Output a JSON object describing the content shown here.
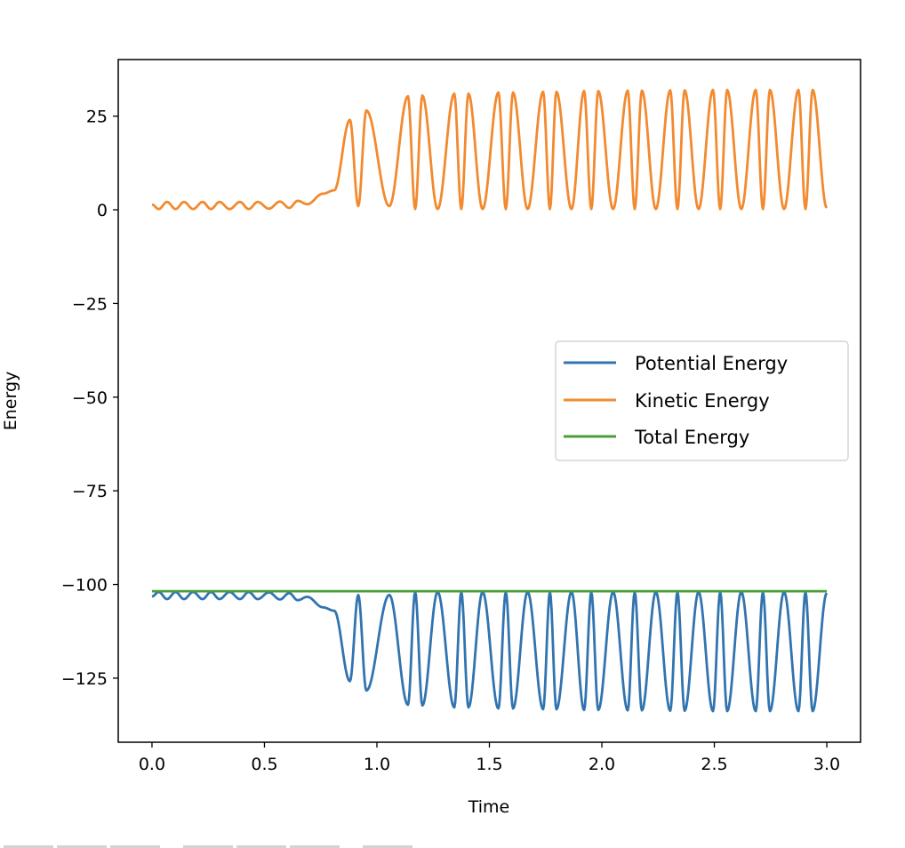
{
  "chart_data": {
    "type": "line",
    "title": "",
    "xlabel": "Time",
    "ylabel": "Energy",
    "xlim": [
      -0.15,
      3.15
    ],
    "ylim": [
      -142.1,
      40.1
    ],
    "xticks": [
      0.0,
      0.5,
      1.0,
      1.5,
      2.0,
      2.5,
      3.0
    ],
    "xtick_labels": [
      "0.0",
      "0.5",
      "1.0",
      "1.5",
      "2.0",
      "2.5",
      "3.0"
    ],
    "yticks": [
      25,
      0,
      -25,
      -50,
      -75,
      -100,
      -125
    ],
    "ytick_labels": [
      "25",
      "0",
      "−25",
      "−50",
      "−75",
      "−100",
      "−125"
    ],
    "grid": false,
    "legend_placement": "center-right",
    "extrema_t": [
      0,
      0.03,
      0.067,
      0.105,
      0.142,
      0.183,
      0.225,
      0.262,
      0.3,
      0.345,
      0.391,
      0.43,
      0.47,
      0.52,
      0.569,
      0.61,
      0.648,
      0.69,
      0.76,
      0.81,
      0.88,
      0.917,
      0.953,
      1.055,
      1.138,
      1.17,
      1.202,
      1.27,
      1.344,
      1.375,
      1.407,
      1.47,
      1.54,
      1.573,
      1.605,
      1.67,
      1.739,
      1.769,
      1.798,
      1.865,
      1.921,
      1.953,
      1.984,
      2.05,
      2.115,
      2.146,
      2.178,
      2.24,
      2.304,
      2.336,
      2.368,
      2.43,
      2.494,
      2.526,
      2.557,
      2.62,
      2.684,
      2.716,
      2.747,
      2.81,
      2.874,
      2.905,
      2.937,
      3.0
    ],
    "series": [
      {
        "name": "Potential Energy",
        "color": "#3274b0",
        "values": [
          -103.2,
          -102.0,
          -103.9,
          -102.0,
          -103.9,
          -102.0,
          -103.9,
          -102.0,
          -103.9,
          -102.0,
          -103.9,
          -102.0,
          -103.9,
          -102.1,
          -104.0,
          -102.3,
          -104.2,
          -103.3,
          -106.1,
          -107.0,
          -125.8,
          -102.8,
          -128.3,
          -102.8,
          -132.1,
          -102.0,
          -132.3,
          -102.0,
          -132.8,
          -102.0,
          -132.8,
          -102.0,
          -133.1,
          -102.0,
          -133.1,
          -102.0,
          -133.3,
          -102.0,
          -133.3,
          -102.0,
          -133.5,
          -102.0,
          -133.5,
          -102.0,
          -133.6,
          -102.0,
          -133.6,
          -102.0,
          -133.7,
          -102.0,
          -133.7,
          -102.0,
          -133.8,
          -102.0,
          -133.8,
          -102.0,
          -133.8,
          -102.0,
          -133.8,
          -102.0,
          -133.8,
          -102.0,
          -133.8,
          -102.3
        ]
      },
      {
        "name": "Kinetic Energy",
        "color": "#f28a30",
        "values": [
          1.4,
          0.2,
          2.1,
          0.2,
          2.1,
          0.2,
          2.1,
          0.2,
          2.1,
          0.2,
          2.1,
          0.2,
          2.1,
          0.3,
          2.2,
          0.5,
          2.4,
          1.5,
          4.3,
          5.2,
          24,
          1,
          26.5,
          1,
          30.3,
          0.2,
          30.5,
          0.2,
          31,
          0.2,
          31,
          0.2,
          31.3,
          0.2,
          31.3,
          0.2,
          31.5,
          0.2,
          31.5,
          0.2,
          31.7,
          0.2,
          31.7,
          0.2,
          31.8,
          0.2,
          31.8,
          0.2,
          31.9,
          0.2,
          31.9,
          0.2,
          32,
          0.2,
          32,
          0.2,
          32,
          0.2,
          32,
          0.2,
          32,
          0.2,
          32,
          0.5
        ]
      },
      {
        "name": "Total Energy",
        "color": "#4a9d3a",
        "constant": -101.8
      }
    ]
  }
}
